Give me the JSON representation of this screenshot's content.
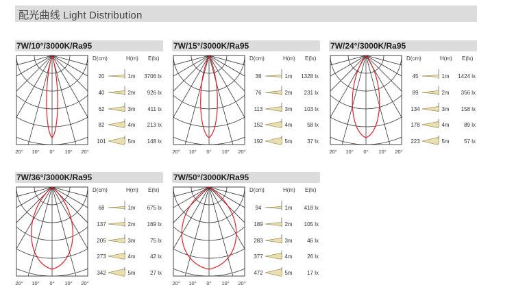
{
  "header": {
    "title": "配光曲线  Light Distribution"
  },
  "columns": {
    "d": "D(cm)",
    "h": "H(m)",
    "e": "E(lx)"
  },
  "angle_labels": [
    "20°",
    "10°",
    "0°",
    "10°",
    "20°"
  ],
  "colors": {
    "curve": "#d9232a",
    "grid": "#333333",
    "header_bg": "#dcdcdc",
    "cone": "#e9dfae"
  },
  "chart_data": [
    {
      "type": "polar",
      "title": "7W/10°/3000K/Ra95",
      "beam_angle_deg": 10,
      "heights_m": [
        "1m",
        "2m",
        "3m",
        "4m",
        "5m"
      ],
      "diameters_cm": [
        20,
        40,
        62,
        82,
        101
      ],
      "illuminance_lx": [
        "3706 lx",
        "926 lx",
        "411 lx",
        "213 lx",
        "148 lx"
      ]
    },
    {
      "type": "polar",
      "title": "7W/15°/3000K/Ra95",
      "beam_angle_deg": 15,
      "heights_m": [
        "1m",
        "2m",
        "3m",
        "4m",
        "5m"
      ],
      "diameters_cm": [
        38,
        76,
        113,
        152,
        192
      ],
      "illuminance_lx": [
        "1328 lx",
        "231 lx",
        "103 lx",
        "58 lx",
        "37 lx"
      ]
    },
    {
      "type": "polar",
      "title": "7W/24°/3000K/Ra95",
      "beam_angle_deg": 24,
      "heights_m": [
        "1m",
        "2m",
        "3m",
        "4m",
        "5m"
      ],
      "diameters_cm": [
        45,
        89,
        134,
        178,
        223
      ],
      "illuminance_lx": [
        "1424 lx",
        "356 lx",
        "158 lx",
        "89 lx",
        "57 lx"
      ]
    },
    {
      "type": "polar",
      "title": "7W/36°/3000K/Ra95",
      "beam_angle_deg": 36,
      "heights_m": [
        "1m",
        "2m",
        "3m",
        "4m",
        "5m"
      ],
      "diameters_cm": [
        68,
        137,
        205,
        273,
        342
      ],
      "illuminance_lx": [
        "675 lx",
        "169 lx",
        "75 lx",
        "42 lx",
        "27 lx"
      ]
    },
    {
      "type": "polar",
      "title": "7W/50°/3000K/Ra95",
      "beam_angle_deg": 50,
      "heights_m": [
        "1m",
        "2m",
        "3m",
        "4m",
        "5m"
      ],
      "diameters_cm": [
        94,
        189,
        283,
        377,
        472
      ],
      "illuminance_lx": [
        "418 lx",
        "105 lx",
        "46 lx",
        "26 lx",
        "17 lx"
      ]
    }
  ]
}
